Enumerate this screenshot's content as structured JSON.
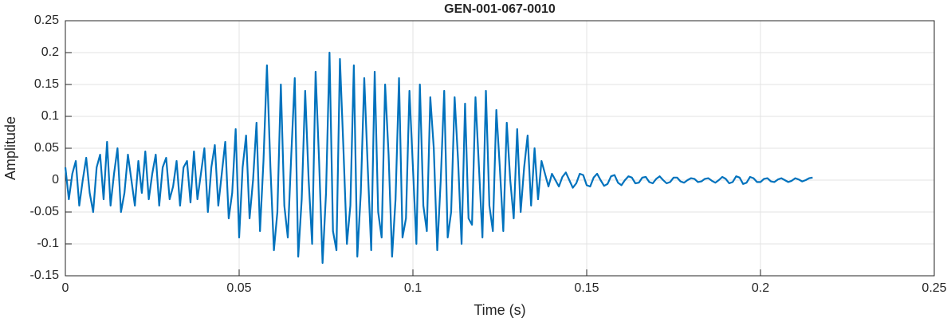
{
  "chart_data": {
    "type": "line",
    "title": "GEN-001-067-0010",
    "x_label": "Time (s)",
    "y_label": "Amplitude",
    "xlim": [
      0,
      0.25
    ],
    "xticks": [
      0,
      0.05,
      0.1,
      0.15,
      0.2,
      0.25
    ],
    "ylim": [
      -0.15,
      0.25
    ],
    "yticks": [
      -0.15,
      -0.1,
      -0.05,
      0,
      0.05,
      0.1,
      0.15,
      0.2,
      0.25
    ],
    "grid": true,
    "x": [
      0,
      0.001,
      0.002,
      0.003,
      0.004,
      0.005,
      0.006,
      0.007,
      0.008,
      0.009,
      0.01,
      0.011,
      0.012,
      0.013,
      0.014,
      0.015,
      0.016,
      0.017,
      0.018,
      0.019,
      0.02,
      0.021,
      0.022,
      0.023,
      0.024,
      0.025,
      0.026,
      0.027,
      0.028,
      0.029,
      0.03,
      0.031,
      0.032,
      0.033,
      0.034,
      0.035,
      0.036,
      0.037,
      0.038,
      0.039,
      0.04,
      0.041,
      0.042,
      0.043,
      0.044,
      0.045,
      0.046,
      0.047,
      0.048,
      0.049,
      0.05,
      0.051,
      0.052,
      0.053,
      0.054,
      0.055,
      0.056,
      0.057,
      0.058,
      0.059,
      0.06,
      0.061,
      0.062,
      0.063,
      0.064,
      0.065,
      0.066,
      0.067,
      0.068,
      0.069,
      0.07,
      0.071,
      0.072,
      0.073,
      0.074,
      0.075,
      0.076,
      0.077,
      0.078,
      0.079,
      0.08,
      0.081,
      0.082,
      0.083,
      0.084,
      0.085,
      0.086,
      0.087,
      0.088,
      0.089,
      0.09,
      0.091,
      0.092,
      0.093,
      0.094,
      0.095,
      0.096,
      0.097,
      0.098,
      0.099,
      0.1,
      0.101,
      0.102,
      0.103,
      0.104,
      0.105,
      0.106,
      0.107,
      0.108,
      0.109,
      0.11,
      0.111,
      0.112,
      0.113,
      0.114,
      0.115,
      0.116,
      0.117,
      0.118,
      0.119,
      0.12,
      0.121,
      0.122,
      0.123,
      0.124,
      0.125,
      0.126,
      0.127,
      0.128,
      0.129,
      0.13,
      0.131,
      0.132,
      0.133,
      0.134,
      0.135,
      0.136,
      0.137,
      0.138,
      0.139,
      0.14,
      0.141,
      0.142,
      0.143,
      0.144,
      0.145,
      0.146,
      0.147,
      0.148,
      0.149,
      0.15,
      0.151,
      0.152,
      0.153,
      0.154,
      0.155,
      0.156,
      0.157,
      0.158,
      0.159,
      0.16,
      0.161,
      0.162,
      0.163,
      0.164,
      0.165,
      0.166,
      0.167,
      0.168,
      0.169,
      0.17,
      0.171,
      0.172,
      0.173,
      0.174,
      0.175,
      0.176,
      0.177,
      0.178,
      0.179,
      0.18,
      0.181,
      0.182,
      0.183,
      0.184,
      0.185,
      0.186,
      0.187,
      0.188,
      0.189,
      0.19,
      0.191,
      0.192,
      0.193,
      0.194,
      0.195,
      0.196,
      0.197,
      0.198,
      0.199,
      0.2,
      0.201,
      0.202,
      0.203,
      0.204,
      0.205,
      0.206,
      0.207,
      0.208,
      0.209,
      0.21,
      0.211,
      0.212,
      0.213,
      0.214,
      0.215
    ],
    "series": [
      {
        "color": "#0072bd",
        "values": [
          0.02,
          -0.03,
          0.01,
          0.03,
          -0.04,
          0.0,
          0.035,
          -0.02,
          -0.05,
          0.02,
          0.04,
          -0.03,
          0.06,
          -0.04,
          0.01,
          0.05,
          -0.05,
          -0.02,
          0.04,
          0.0,
          -0.04,
          0.03,
          -0.02,
          0.045,
          -0.03,
          0.01,
          0.04,
          -0.04,
          0.02,
          0.035,
          -0.03,
          -0.01,
          0.03,
          -0.04,
          0.02,
          0.03,
          -0.035,
          0.045,
          -0.03,
          0.01,
          0.05,
          -0.05,
          0.02,
          0.055,
          -0.04,
          0.01,
          0.06,
          -0.06,
          -0.02,
          0.08,
          -0.09,
          0.02,
          0.07,
          -0.06,
          0.0,
          0.09,
          -0.08,
          0.03,
          0.18,
          0.02,
          -0.11,
          -0.05,
          0.15,
          -0.04,
          -0.09,
          0.04,
          0.16,
          -0.12,
          -0.03,
          0.14,
          0.0,
          -0.1,
          0.17,
          0.03,
          -0.13,
          -0.02,
          0.2,
          -0.08,
          -0.11,
          0.19,
          0.05,
          -0.1,
          -0.04,
          0.18,
          -0.12,
          -0.02,
          0.16,
          0.02,
          -0.11,
          0.17,
          -0.05,
          -0.09,
          0.15,
          0.04,
          -0.12,
          -0.03,
          0.16,
          -0.09,
          -0.06,
          0.14,
          0.02,
          -0.1,
          0.15,
          -0.04,
          -0.08,
          0.13,
          0.05,
          -0.11,
          0.0,
          0.14,
          -0.09,
          -0.05,
          0.13,
          0.03,
          -0.1,
          0.12,
          -0.06,
          -0.07,
          0.13,
          0.02,
          -0.09,
          0.14,
          -0.04,
          -0.08,
          0.11,
          0.02,
          -0.08,
          0.09,
          0.0,
          -0.06,
          0.08,
          -0.05,
          0.02,
          0.07,
          -0.04,
          0.05,
          -0.03,
          0.03,
          0.01,
          -0.01,
          0.01,
          0.0,
          -0.01,
          0.005,
          0.012,
          0.0,
          -0.012,
          -0.005,
          0.01,
          0.008,
          -0.008,
          -0.01,
          0.004,
          0.01,
          0.0,
          -0.009,
          -0.006,
          0.006,
          0.008,
          -0.004,
          -0.008,
          0.0,
          0.006,
          0.004,
          -0.005,
          -0.004,
          0.004,
          0.005,
          -0.003,
          -0.005,
          0.002,
          0.006,
          0.0,
          -0.005,
          -0.003,
          0.004,
          0.004,
          -0.002,
          -0.004,
          0.0,
          0.003,
          0.002,
          -0.003,
          -0.002,
          0.002,
          0.003,
          -0.001,
          -0.004,
          0.0,
          0.005,
          0.002,
          -0.005,
          -0.003,
          0.006,
          0.004,
          -0.006,
          -0.004,
          0.005,
          0.003,
          -0.003,
          -0.003,
          0.002,
          0.003,
          -0.002,
          -0.003,
          0.001,
          0.003,
          0.0,
          -0.003,
          -0.001,
          0.003,
          0.001,
          -0.002,
          0.0,
          0.003,
          0.004
        ]
      }
    ]
  }
}
